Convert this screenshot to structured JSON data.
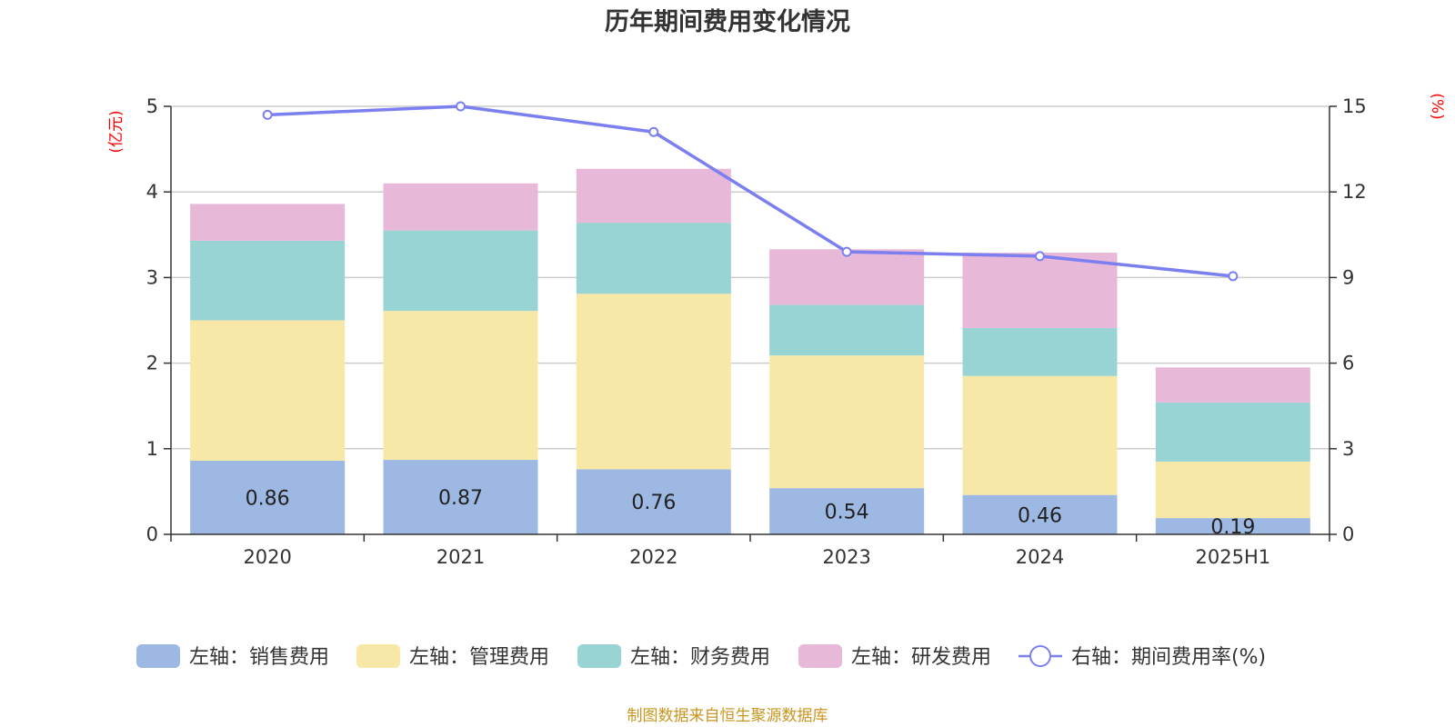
{
  "chart_data": {
    "type": "bar",
    "title": "历年期间费用变化情况",
    "categories": [
      "2020",
      "2021",
      "2022",
      "2023",
      "2024",
      "2025H1"
    ],
    "y_left": {
      "unit": "(亿元)",
      "ylim": [
        0,
        5
      ],
      "ticks": [
        "0",
        "1",
        "2",
        "3",
        "4",
        "5"
      ]
    },
    "y_right": {
      "unit": "(%)",
      "ylim": [
        0,
        15
      ],
      "ticks": [
        "0",
        "3",
        "6",
        "9",
        "12",
        "15"
      ]
    },
    "series": [
      {
        "name": "左轴：销售费用",
        "axis": "left",
        "kind": "bar",
        "color": "#9db8e3",
        "values": [
          0.86,
          0.87,
          0.76,
          0.54,
          0.46,
          0.19
        ],
        "labels": [
          "0.86",
          "0.87",
          "0.76",
          "0.54",
          "0.46",
          "0.19"
        ]
      },
      {
        "name": "左轴：管理费用",
        "axis": "left",
        "kind": "bar",
        "color": "#f8e8a8",
        "values": [
          1.64,
          1.74,
          2.05,
          1.55,
          1.39,
          0.66
        ]
      },
      {
        "name": "左轴：财务费用",
        "axis": "left",
        "kind": "bar",
        "color": "#98d4d4",
        "values": [
          0.93,
          0.94,
          0.83,
          0.59,
          0.56,
          0.69
        ]
      },
      {
        "name": "左轴：研发费用",
        "axis": "left",
        "kind": "bar",
        "color": "#e8b8d8",
        "values": [
          0.43,
          0.55,
          0.63,
          0.65,
          0.88,
          0.41
        ]
      },
      {
        "name": "右轴：期间费用率(%)",
        "axis": "right",
        "kind": "line",
        "color": "#7b7fef",
        "values": [
          14.7,
          15.0,
          14.1,
          9.9,
          9.75,
          9.05
        ]
      }
    ],
    "grid": true,
    "legend_position": "bottom"
  },
  "footer": {
    "source": "制图数据来自恒生聚源数据库"
  }
}
